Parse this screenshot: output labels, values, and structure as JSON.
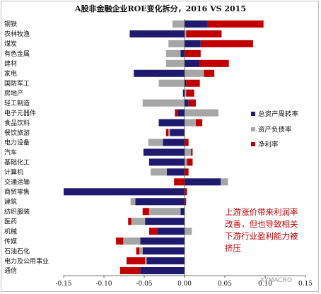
{
  "chart_data": {
    "type": "bar",
    "stacked": true,
    "orientation": "horizontal",
    "title": "A股非金融企业ROE变化拆分，2016 VS 2015",
    "categories": [
      "钢铁",
      "农林牧渔",
      "煤炭",
      "有色金属",
      "建材",
      "家电",
      "国防军工",
      "房地产",
      "轻工制造",
      "电子元器件",
      "食品饮料",
      "餐饮旅游",
      "电力设备",
      "汽车",
      "基础化工",
      "计算机",
      "交通运输",
      "商贸零售",
      "建筑",
      "纺织服装",
      "医药",
      "机械",
      "传媒",
      "石油石化",
      "电力及公用事业",
      "通信"
    ],
    "series": [
      {
        "name": "总资产周转率",
        "color": "#1f1a6e",
        "values": [
          0.028,
          -0.068,
          0.02,
          -0.005,
          0.018,
          -0.063,
          0.002,
          -0.002,
          0.005,
          -0.008,
          -0.032,
          -0.018,
          -0.027,
          -0.051,
          -0.044,
          -0.022,
          0.045,
          -0.16,
          -0.061,
          -0.005,
          -0.049,
          -0.034,
          -0.055,
          -0.052,
          -0.047,
          -0.055
        ]
      },
      {
        "name": "资产负债率",
        "color": "#a6a6a6",
        "values": [
          -0.015,
          0.002,
          -0.02,
          -0.018,
          -0.023,
          0.024,
          -0.032,
          0.002,
          -0.052,
          0.042,
          0.014,
          -0.002,
          -0.018,
          0.008,
          0.003,
          -0.02,
          0.009,
          0.0,
          -0.006,
          -0.039,
          -0.017,
          0.009,
          -0.021,
          -0.004,
          -0.002,
          0.0
        ]
      },
      {
        "name": "净利率",
        "color": "#c00000",
        "values": [
          0.07,
          0.044,
          0.065,
          0.02,
          0.037,
          0.013,
          0.017,
          0.01,
          0.009,
          -0.004,
          0.008,
          -0.003,
          0.005,
          0.002,
          0.007,
          0.005,
          -0.013,
          0.003,
          0.002,
          -0.008,
          -0.004,
          -0.01,
          -0.009,
          -0.004,
          -0.023,
          -0.025
        ]
      }
    ],
    "xlim": [
      -0.15,
      0.15
    ],
    "xticks": [
      "-0.15",
      "-0.10",
      "-0.05",
      "0.00",
      "0.05",
      "0.10",
      "0.15"
    ],
    "legend_position": "right",
    "annotation": "上游涨价带来利润率改善，但也导致相关下游行业盈利能力被挤压"
  },
  "watermark": "XYMACRO"
}
